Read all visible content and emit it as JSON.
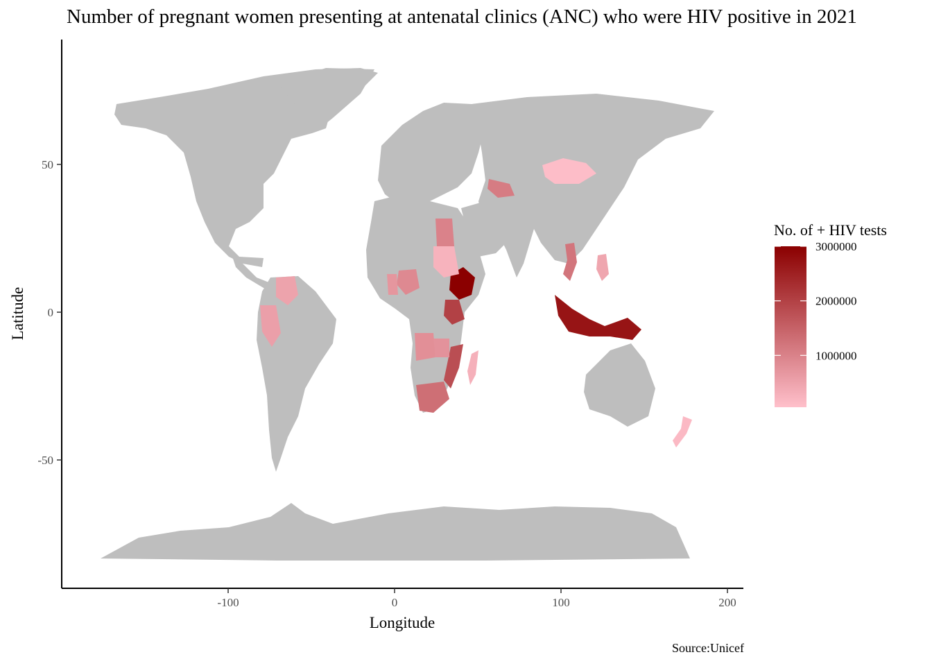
{
  "title": "Number of pregnant women presenting at antenatal clinics (ANC) who were HIV positive in 2021",
  "caption": "Source:Unicef",
  "colors": {
    "no_data": "#bebebe",
    "low": "#ffc0cb",
    "high": "#8b0000"
  },
  "chart_data": {
    "type": "choropleth",
    "xlabel": "Longitude",
    "ylabel": "Latitude",
    "x_ticks": [
      "-100",
      "0",
      "100",
      "200"
    ],
    "y_ticks": [
      "50",
      "0",
      "-50"
    ],
    "xlim": [
      -190,
      210
    ],
    "ylim": [
      -93,
      93
    ],
    "legend": {
      "title": "No. of + HIV tests",
      "labels": [
        "3000000",
        "2000000",
        "1000000"
      ],
      "breaks": [
        3000000,
        2000000,
        1000000
      ],
      "min": 50000,
      "max": 3000000,
      "placement": "right"
    },
    "regions": [
      {
        "name": "Ethiopia",
        "value": 3000000
      },
      {
        "name": "Indonesia",
        "value": 2700000
      },
      {
        "name": "Kenya",
        "value": 2000000
      },
      {
        "name": "Mozambique",
        "value": 1800000
      },
      {
        "name": "South Africa",
        "value": 1300000
      },
      {
        "name": "Egypt",
        "value": 1000000
      },
      {
        "name": "Vietnam",
        "value": 1200000
      },
      {
        "name": "Uzbekistan",
        "value": 1100000
      },
      {
        "name": "Nigeria",
        "value": 900000
      },
      {
        "name": "Angola",
        "value": 800000
      },
      {
        "name": "Zambia",
        "value": 750000
      },
      {
        "name": "Ghana",
        "value": 700000
      },
      {
        "name": "Peru",
        "value": 550000
      },
      {
        "name": "Colombia",
        "value": 500000
      },
      {
        "name": "Philippines",
        "value": 450000
      },
      {
        "name": "Sudan",
        "value": 250000
      },
      {
        "name": "Mongolia",
        "value": 100000
      },
      {
        "name": "New Zealand",
        "value": 150000
      },
      {
        "name": "Madagascar",
        "value": 300000
      }
    ]
  }
}
